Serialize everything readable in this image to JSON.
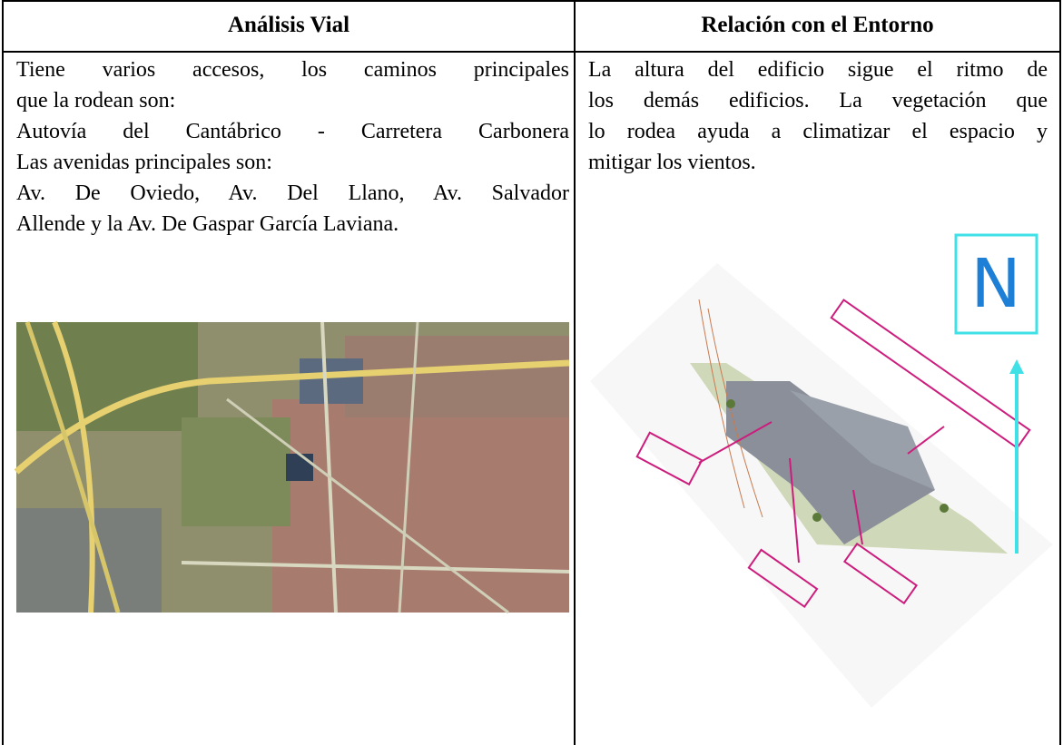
{
  "table": {
    "headers": [
      "Análisis Vial",
      "Relación con el Entorno"
    ],
    "cells": [
      {
        "lines": [
          "Tiene varios accesos, los caminos principales",
          "que la rodean son:",
          "Autovía del Cantábrico -  Carretera Carbonera",
          "Las avenidas principales son:",
          "Av. De Oviedo, Av. Del Llano, Av. Salvador",
          "Allende y la Av. De Gaspar García Laviana."
        ]
      },
      {
        "lines": [
          "La altura del edificio sigue el ritmo de",
          "los demás edificios. La vegetación que",
          "lo rodea ayuda a climatizar el espacio y",
          "mitigar los vientos."
        ]
      }
    ]
  },
  "compass_label": "N"
}
